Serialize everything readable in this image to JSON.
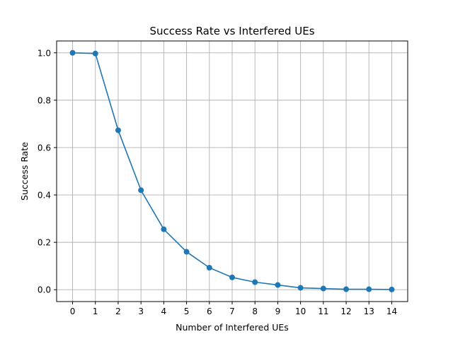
{
  "chart_data": {
    "type": "line",
    "title": "Success Rate vs Interfered UEs",
    "xlabel": "Number of Interfered UEs",
    "ylabel": "Success Rate",
    "x": [
      0,
      1,
      2,
      3,
      4,
      5,
      6,
      7,
      8,
      9,
      10,
      11,
      12,
      13,
      14
    ],
    "series": [
      {
        "values": [
          1.0,
          0.997,
          0.673,
          0.42,
          0.255,
          0.16,
          0.093,
          0.052,
          0.032,
          0.02,
          0.008,
          0.005,
          0.002,
          0.002,
          0.001
        ],
        "color": "#1f77b4",
        "marker": "circle"
      }
    ],
    "xticks": [
      "0",
      "1",
      "2",
      "3",
      "4",
      "5",
      "6",
      "7",
      "8",
      "9",
      "10",
      "11",
      "12",
      "13",
      "14"
    ],
    "yticks": [
      "0.0",
      "0.2",
      "0.4",
      "0.6",
      "0.8",
      "1.0"
    ],
    "xlim": [
      -0.7,
      14.7
    ],
    "ylim": [
      -0.05,
      1.05
    ],
    "grid": true
  }
}
